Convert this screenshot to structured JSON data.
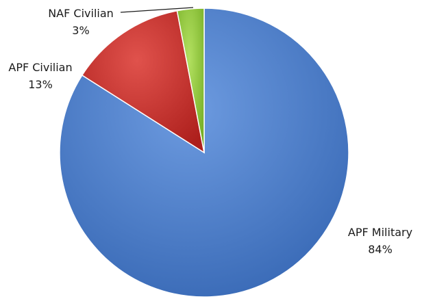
{
  "chart_data": {
    "type": "pie",
    "start_angle_deg": 0,
    "direction": "clockwise",
    "slices": [
      {
        "label": "APF Military",
        "value_label": "84%",
        "value": 84,
        "color": "#4a7ec9"
      },
      {
        "label": "APF Civilian",
        "value_label": "13%",
        "value": 13,
        "color": "#c8302c"
      },
      {
        "label": "NAF Civilian",
        "value_label": "3%",
        "value": 3,
        "color": "#8fcc3a"
      }
    ],
    "legend": "none",
    "label_position": "outside"
  }
}
